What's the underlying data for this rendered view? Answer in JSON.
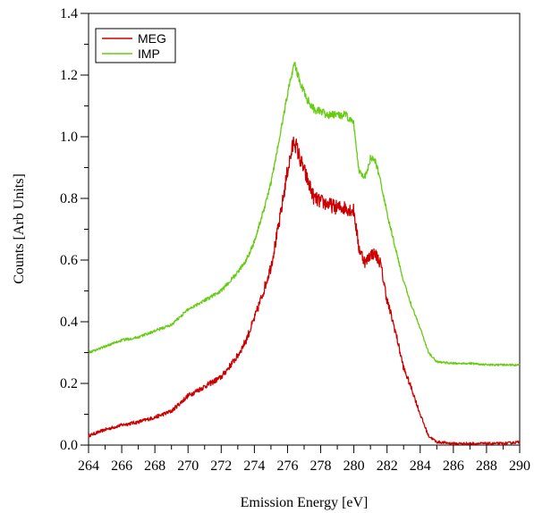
{
  "chart_data": {
    "type": "line",
    "title": "",
    "xlabel": "Emission Energy [eV]",
    "ylabel": "Counts [Arb Units]",
    "xlim": [
      264,
      290
    ],
    "ylim": [
      0.0,
      1.4
    ],
    "x_ticks": [
      264,
      266,
      268,
      270,
      272,
      274,
      276,
      278,
      280,
      282,
      284,
      286,
      288,
      290
    ],
    "x_tick_labels": [
      "264",
      "266",
      "268",
      "270",
      "272",
      "274",
      "276",
      "278",
      "280",
      "282",
      "284",
      "286",
      "288",
      "290"
    ],
    "y_ticks": [
      0.0,
      0.2,
      0.4,
      0.6,
      0.8,
      1.0,
      1.2,
      1.4
    ],
    "y_tick_labels": [
      "0.0",
      "0.2",
      "0.4",
      "0.6",
      "0.8",
      "1.0",
      "1.2",
      "1.4"
    ],
    "grid": false,
    "legend_position": "top-left",
    "series": [
      {
        "name": "MEG",
        "color": "#cc0000",
        "x": [
          264,
          265,
          266,
          267,
          268,
          269,
          270,
          271,
          272,
          273,
          273.5,
          274,
          274.5,
          275,
          275.5,
          276,
          276.4,
          276.8,
          277.2,
          277.6,
          278,
          278.5,
          279,
          279.5,
          280,
          280.3,
          280.7,
          281,
          281.3,
          281.6,
          282,
          282.5,
          283,
          283.5,
          284,
          284.5,
          285,
          286,
          287,
          288,
          289,
          290
        ],
        "y": [
          0.03,
          0.05,
          0.065,
          0.075,
          0.09,
          0.11,
          0.16,
          0.19,
          0.22,
          0.29,
          0.34,
          0.41,
          0.49,
          0.58,
          0.72,
          0.89,
          0.99,
          0.92,
          0.86,
          0.8,
          0.79,
          0.78,
          0.77,
          0.77,
          0.76,
          0.64,
          0.59,
          0.62,
          0.62,
          0.59,
          0.47,
          0.37,
          0.25,
          0.18,
          0.1,
          0.03,
          0.01,
          0.005,
          0.005,
          0.005,
          0.005,
          0.01
        ]
      },
      {
        "name": "IMP",
        "color": "#66cc11",
        "x": [
          264,
          265,
          266,
          267,
          268,
          269,
          270,
          271,
          272,
          273,
          273.5,
          274,
          274.5,
          275,
          275.5,
          276,
          276.4,
          276.8,
          277.2,
          277.6,
          278,
          278.5,
          279,
          279.5,
          280,
          280.3,
          280.7,
          281,
          281.3,
          281.6,
          282,
          282.5,
          283,
          283.5,
          284,
          284.5,
          285,
          286,
          287,
          288,
          289,
          290
        ],
        "y": [
          0.3,
          0.32,
          0.34,
          0.35,
          0.37,
          0.39,
          0.44,
          0.47,
          0.5,
          0.56,
          0.6,
          0.66,
          0.75,
          0.85,
          0.99,
          1.14,
          1.24,
          1.17,
          1.12,
          1.09,
          1.08,
          1.07,
          1.07,
          1.07,
          1.04,
          0.89,
          0.87,
          0.93,
          0.92,
          0.86,
          0.75,
          0.64,
          0.53,
          0.45,
          0.38,
          0.3,
          0.27,
          0.265,
          0.265,
          0.26,
          0.26,
          0.26
        ]
      }
    ]
  }
}
